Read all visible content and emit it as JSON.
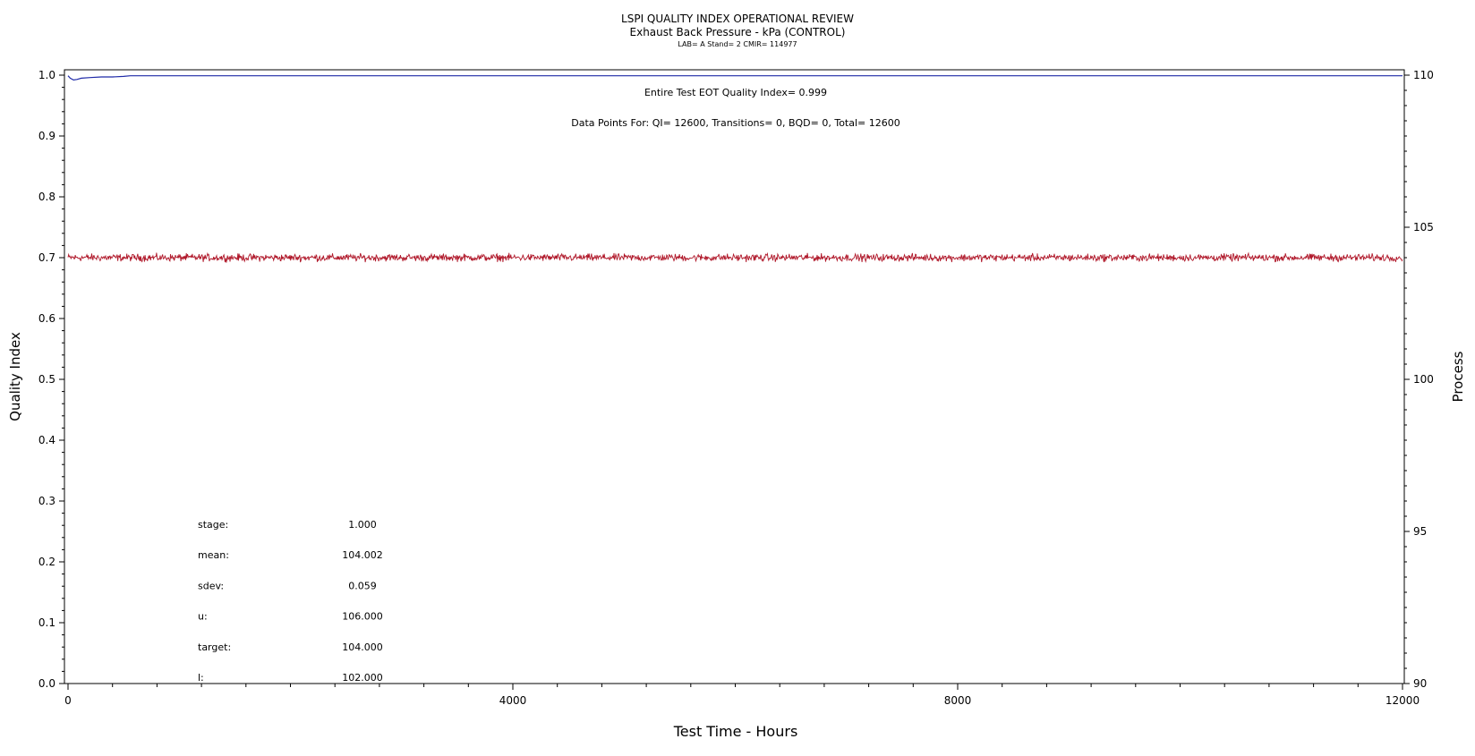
{
  "chart_data": {
    "type": "line",
    "title": "LSPI QUALITY INDEX OPERATIONAL REVIEW",
    "subtitle": "Exhaust Back Pressure - kPa (CONTROL)",
    "info_line": "LAB= A Stand= 2 CMIR= 114977",
    "xlabel": "Test Time - Hours",
    "ylabel_left": "Quality Index",
    "ylabel_right": "Process",
    "xlim": [
      0,
      12000
    ],
    "ylim_left": [
      0,
      1
    ],
    "ylim_right": [
      90,
      110
    ],
    "x_ticks": [
      0,
      4000,
      8000,
      12000
    ],
    "y_left_ticks": [
      "0.0",
      "0.1",
      "0.2",
      "0.3",
      "0.4",
      "0.5",
      "0.6",
      "0.7",
      "0.8",
      "0.9",
      "1.0"
    ],
    "y_right_ticks": [
      90,
      95,
      100,
      105,
      110
    ],
    "annotations": {
      "eot": "Entire Test EOT Quality Index=   0.999",
      "points": "Data Points For: QI= 12600, Transitions=     0, BQD=     0, Total= 12600"
    },
    "stats": [
      {
        "label": "stage:",
        "value": "1.000"
      },
      {
        "label": "mean:",
        "value": "104.002"
      },
      {
        "label": "sdev:",
        "value": "0.059"
      },
      {
        "label": "u:",
        "value": "106.000"
      },
      {
        "label": "target:",
        "value": "104.000"
      },
      {
        "label": "l:",
        "value": "102.000"
      }
    ],
    "series": [
      {
        "axis": "left",
        "color": "#1f2aa8",
        "x": [
          0,
          20,
          50,
          80,
          120,
          200,
          300,
          400,
          500,
          560,
          700,
          2000,
          6000,
          10000,
          12000
        ],
        "y": [
          0.999,
          0.995,
          0.992,
          0.993,
          0.995,
          0.996,
          0.997,
          0.997,
          0.998,
          0.999,
          0.999,
          0.999,
          0.999,
          0.999,
          0.999
        ]
      },
      {
        "axis": "right",
        "color": "#b0182a",
        "mean": 104.002,
        "sdev": 0.059,
        "x_range": [
          0,
          12000
        ]
      }
    ]
  }
}
